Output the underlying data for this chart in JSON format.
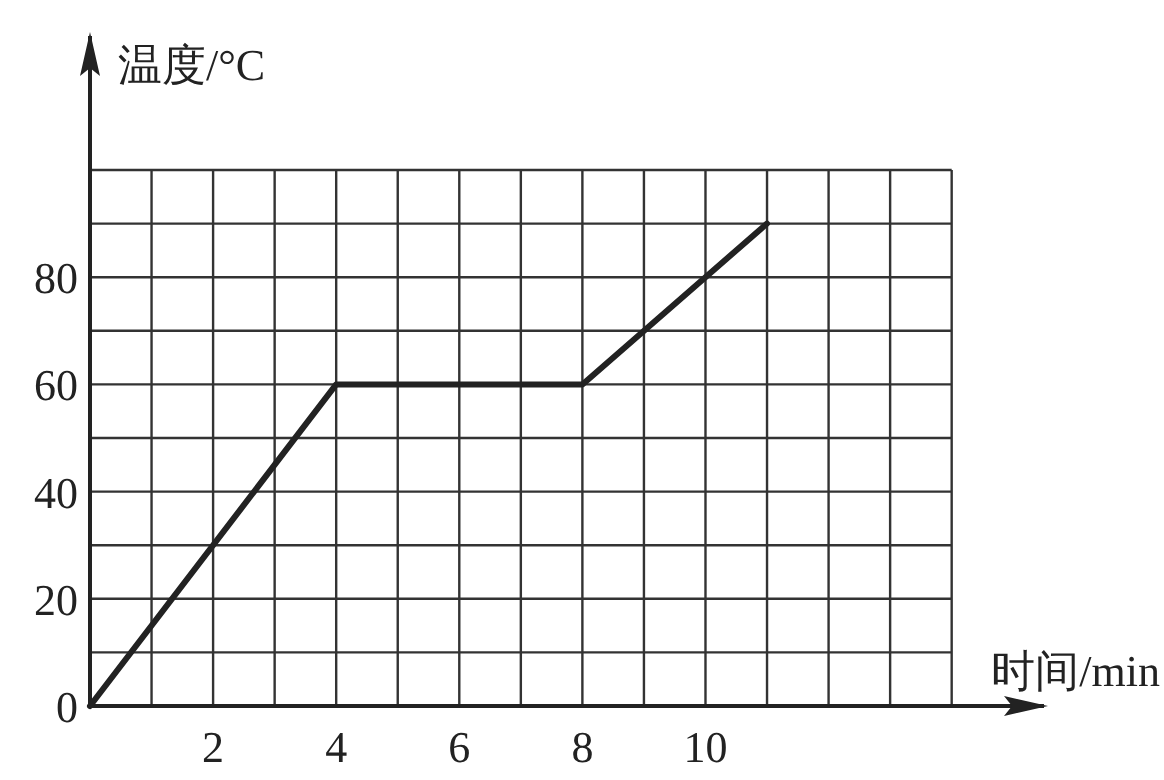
{
  "chart_data": {
    "type": "line",
    "xlabel": "时间/min",
    "ylabel": "温度/°C",
    "x": [
      0,
      4,
      8,
      11
    ],
    "series": [
      {
        "color": "#222222",
        "values": [
          0,
          60,
          60,
          90
        ]
      }
    ],
    "xlim": [
      0,
      15.5
    ],
    "ylim": [
      0,
      125
    ],
    "xticks": [
      {
        "value": 1,
        "label": null
      },
      2,
      {
        "value": 3,
        "label": null
      },
      4,
      {
        "value": 5,
        "label": null
      },
      6,
      {
        "value": 7,
        "label": null
      },
      8,
      {
        "value": 9,
        "label": null
      },
      10,
      {
        "value": 11,
        "label": null
      },
      {
        "value": 12,
        "label": null
      },
      {
        "value": 13,
        "label": null
      },
      {
        "value": 14,
        "label": null
      }
    ],
    "yticks": [
      0,
      {
        "value": 10,
        "label": null
      },
      20,
      {
        "value": 30,
        "label": null
      },
      40,
      {
        "value": 50,
        "label": null
      },
      60,
      {
        "value": 70,
        "label": null
      },
      80,
      {
        "value": 90,
        "label": null
      },
      {
        "value": 100,
        "label": null
      }
    ],
    "grid": true,
    "marker": "none",
    "line_style": "solid"
  }
}
